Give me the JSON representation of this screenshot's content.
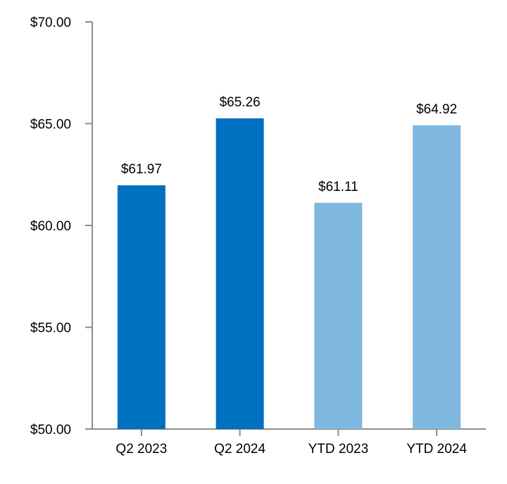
{
  "chart_data": {
    "type": "bar",
    "title": "",
    "xlabel": "",
    "ylabel": "",
    "categories": [
      "Q2 2023",
      "Q2 2024",
      "YTD 2023",
      "YTD 2024"
    ],
    "values": [
      61.97,
      65.26,
      61.11,
      64.92
    ],
    "data_labels": [
      "$61.97",
      "$65.26",
      "$61.11",
      "$64.92"
    ],
    "colors": [
      "#0070C0",
      "#0070C0",
      "#7FB7E0",
      "#7FB7E0"
    ],
    "ylim": [
      50,
      70
    ],
    "yticks": [
      50,
      55,
      60,
      65,
      70
    ],
    "ytick_labels": [
      "$50.00",
      "$55.00",
      "$60.00",
      "$65.00",
      "$70.00"
    ],
    "grid": false,
    "legend": "none"
  }
}
